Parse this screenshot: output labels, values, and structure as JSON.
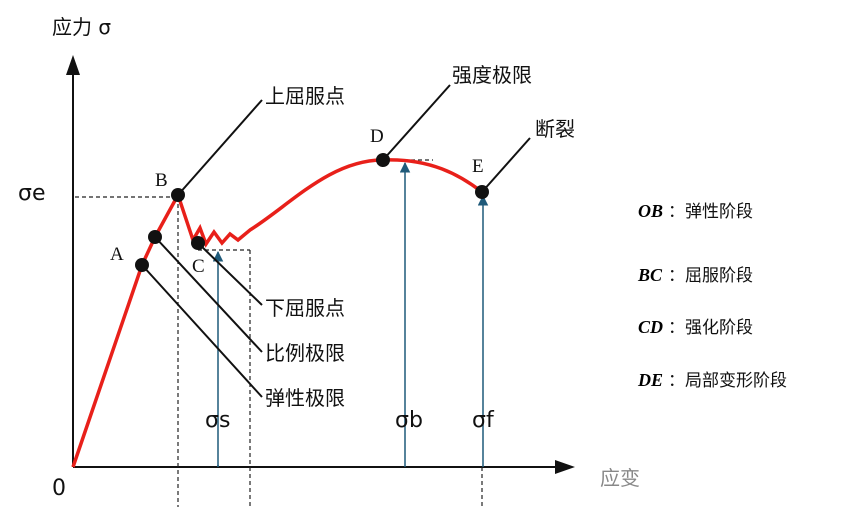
{
  "axes": {
    "y_label": "应力 σ",
    "origin": "0",
    "x_label": "应变"
  },
  "points": [
    {
      "label": "A"
    },
    {
      "label": "B"
    },
    {
      "label": "C"
    },
    {
      "label": "D"
    },
    {
      "label": "E"
    }
  ],
  "callouts": [
    {
      "label": "上屈服点"
    },
    {
      "label": "强度极限"
    },
    {
      "label": "断裂"
    },
    {
      "label": "下屈服点"
    },
    {
      "label": "比例极限"
    },
    {
      "label": "弹性极限"
    }
  ],
  "stress_labels": [
    {
      "label": "σe"
    },
    {
      "label": "σs"
    },
    {
      "label": "σb"
    },
    {
      "label": "σf"
    }
  ],
  "legend": [
    {
      "key": "OB",
      "text": "：弹性阶段"
    },
    {
      "key": "BC",
      "text": "：屈服阶段"
    },
    {
      "key": "CD",
      "text": "：强化阶段"
    },
    {
      "key": "DE",
      "text": "：局部变形阶段"
    }
  ]
}
